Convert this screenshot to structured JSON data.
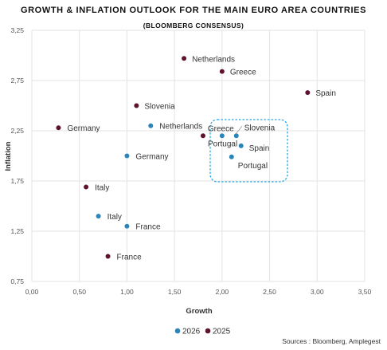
{
  "chart_data": {
    "type": "scatter",
    "title": "GROWTH & INFLATION OUTLOOK FOR THE MAIN EURO AREA COUNTRIES",
    "subtitle": "(BLOOMBERG CONSENSUS)",
    "xlabel": "Growth",
    "ylabel": "Inflation",
    "xlim": [
      0,
      3.5
    ],
    "ylim": [
      0.75,
      3.25
    ],
    "xticks": [
      "0,00",
      "0,50",
      "1,00",
      "1,50",
      "2,00",
      "2,50",
      "3,00",
      "3,50"
    ],
    "yticks": [
      "0,75",
      "1,25",
      "1,75",
      "2,25",
      "2,75",
      "3,25"
    ],
    "grid": true,
    "legend_position": "bottom-center",
    "series": [
      {
        "name": "2026",
        "color": "#2a86b8",
        "points": [
          {
            "label": "Netherlands",
            "x": 1.25,
            "y": 2.3
          },
          {
            "label": "Germany",
            "x": 1.0,
            "y": 2.0
          },
          {
            "label": "Italy",
            "x": 0.7,
            "y": 1.4
          },
          {
            "label": "France",
            "x": 1.0,
            "y": 1.3
          },
          {
            "label": "Portugal",
            "x": 2.1,
            "y": 1.99
          },
          {
            "label": "Spain",
            "x": 2.2,
            "y": 2.1
          },
          {
            "label": "Slovenia",
            "x": 2.15,
            "y": 2.2
          },
          {
            "label": "Greece",
            "x": 2.0,
            "y": 2.2
          }
        ]
      },
      {
        "name": "2025",
        "color": "#5e1230",
        "points": [
          {
            "label": "Netherlands",
            "x": 1.6,
            "y": 2.97
          },
          {
            "label": "Greece",
            "x": 2.0,
            "y": 2.84
          },
          {
            "label": "Spain",
            "x": 2.9,
            "y": 2.63
          },
          {
            "label": "Slovenia",
            "x": 1.1,
            "y": 2.5
          },
          {
            "label": "Germany",
            "x": 0.28,
            "y": 2.28
          },
          {
            "label": "Portugal",
            "x": 1.8,
            "y": 2.2
          },
          {
            "label": "Italy",
            "x": 0.57,
            "y": 1.69
          },
          {
            "label": "France",
            "x": 0.8,
            "y": 1.0
          }
        ]
      }
    ],
    "source": "Sources : Bloomberg, Amplegest"
  }
}
